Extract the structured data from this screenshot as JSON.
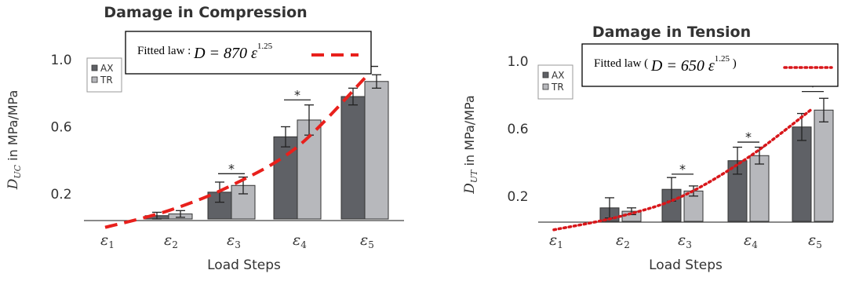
{
  "chart_data": [
    {
      "type": "bar",
      "title": "Damage in Compression",
      "xlabel": "Load Steps",
      "ylabel_var": "D",
      "ylabel_sub": "UC",
      "ylabel_text": " in MPa/MPa",
      "categories": [
        {
          "base": "ε",
          "sub": "1"
        },
        {
          "base": "ε",
          "sub": "2"
        },
        {
          "base": "ε",
          "sub": "3"
        },
        {
          "base": "ε",
          "sub": "4"
        },
        {
          "base": "ε",
          "sub": "5"
        }
      ],
      "yticks": [
        "0.2",
        "0.6",
        "1.0"
      ],
      "ylim": [
        0.05,
        1.0
      ],
      "legend_position": "top-left",
      "series": [
        {
          "name": "AX",
          "color": "#5f6166",
          "values": [
            0.0,
            0.07,
            0.21,
            0.54,
            0.78
          ],
          "errors": [
            0.0,
            0.02,
            0.06,
            0.06,
            0.05
          ]
        },
        {
          "name": "TR",
          "color": "#b7b8bc",
          "values": [
            0.0,
            0.08,
            0.25,
            0.64,
            0.87
          ],
          "errors": [
            0.0,
            0.02,
            0.05,
            0.09,
            0.04
          ]
        }
      ],
      "significance": [
        {
          "category": 2,
          "label": "*",
          "y": 0.32
        },
        {
          "category": 3,
          "label": "*",
          "y": 0.76
        },
        {
          "category": 4,
          "label": "*",
          "y": 0.96
        }
      ],
      "fit": {
        "label_text": "Fitted law : ",
        "equation": "D = 870 ε",
        "exponent": "1.25",
        "coefficient": 870,
        "power": 1.25,
        "curve_y": [
          0.0,
          0.1,
          0.25,
          0.48,
          0.89
        ],
        "color": "#e8201c",
        "style": "dashed"
      }
    },
    {
      "type": "bar",
      "title": "Damage in Tension",
      "xlabel": "Load Steps",
      "ylabel_var": "D",
      "ylabel_sub": "UT",
      "ylabel_text": " in MPa/MPa",
      "categories": [
        {
          "base": "ε",
          "sub": "1"
        },
        {
          "base": "ε",
          "sub": "2"
        },
        {
          "base": "ε",
          "sub": "3"
        },
        {
          "base": "ε",
          "sub": "4"
        },
        {
          "base": "ε",
          "sub": "5"
        }
      ],
      "yticks": [
        "0.2",
        "0.6",
        "1.0"
      ],
      "ylim": [
        0.05,
        1.0
      ],
      "legend_position": "top-left",
      "series": [
        {
          "name": "AX",
          "color": "#5f6166",
          "values": [
            0.0,
            0.13,
            0.24,
            0.41,
            0.61
          ],
          "errors": [
            0.0,
            0.06,
            0.07,
            0.08,
            0.08
          ]
        },
        {
          "name": "TR",
          "color": "#b7b8bc",
          "values": [
            0.0,
            0.11,
            0.23,
            0.44,
            0.71
          ],
          "errors": [
            0.0,
            0.02,
            0.03,
            0.05,
            0.07
          ]
        }
      ],
      "significance": [
        {
          "category": 2,
          "label": "*",
          "y": 0.33
        },
        {
          "category": 3,
          "label": "*",
          "y": 0.52
        },
        {
          "category": 4,
          "label": "*",
          "y": 0.82
        }
      ],
      "fit": {
        "label_text": "Fitted law ( ",
        "equation": "D = 650 ε",
        "exponent": "1.25",
        "label_close": " )",
        "coefficient": 650,
        "power": 1.25,
        "curve_y": [
          0.0,
          0.08,
          0.2,
          0.43,
          0.72
        ],
        "color": "#d8161a",
        "style": "dotted"
      }
    }
  ]
}
